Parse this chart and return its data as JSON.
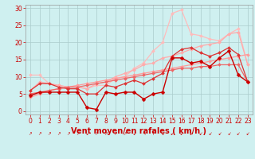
{
  "background_color": "#cff0f0",
  "grid_color": "#aacccc",
  "xlabel": "Vent moyen/en rafales ( km/h )",
  "xlabel_color": "#cc0000",
  "xlabel_fontsize": 7,
  "tick_color": "#cc0000",
  "tick_fontsize": 5.5,
  "xlim": [
    -0.5,
    23.5
  ],
  "ylim": [
    -1,
    31
  ],
  "yticks": [
    0,
    5,
    10,
    15,
    20,
    25,
    30
  ],
  "xticks": [
    0,
    1,
    2,
    3,
    4,
    5,
    6,
    7,
    8,
    9,
    10,
    11,
    12,
    13,
    14,
    15,
    16,
    17,
    18,
    19,
    20,
    21,
    22,
    23
  ],
  "series": [
    {
      "x": [
        0,
        1,
        2,
        3,
        4,
        5,
        6,
        7,
        8,
        9,
        10,
        11,
        12,
        13,
        14,
        15,
        16,
        17,
        18,
        19,
        20,
        21,
        22,
        23
      ],
      "y": [
        10.5,
        10.5,
        8.0,
        7.5,
        7.0,
        7.0,
        6.5,
        7.5,
        7.5,
        9.5,
        10.0,
        12.5,
        14.0,
        17.5,
        20.0,
        28.5,
        29.5,
        22.5,
        22.0,
        21.0,
        20.5,
        22.5,
        24.0,
        13.5
      ],
      "color": "#ffbbbb",
      "lw": 0.9,
      "marker": "D",
      "markersize": 2.0
    },
    {
      "x": [
        0,
        1,
        2,
        3,
        4,
        5,
        6,
        7,
        8,
        9,
        10,
        11,
        12,
        13,
        14,
        15,
        16,
        17,
        18,
        19,
        20,
        21,
        22,
        23
      ],
      "y": [
        6.0,
        8.5,
        8.0,
        7.5,
        7.0,
        7.0,
        6.5,
        8.0,
        8.5,
        10.0,
        11.0,
        12.0,
        13.5,
        14.0,
        15.5,
        16.0,
        17.0,
        18.0,
        19.0,
        19.5,
        20.0,
        22.5,
        23.0,
        13.5
      ],
      "color": "#ffaaaa",
      "lw": 0.9,
      "marker": "D",
      "markersize": 2.0
    },
    {
      "x": [
        0,
        1,
        2,
        3,
        4,
        5,
        6,
        7,
        8,
        9,
        10,
        11,
        12,
        13,
        14,
        15,
        16,
        17,
        18,
        19,
        20,
        21,
        22,
        23
      ],
      "y": [
        4.0,
        5.0,
        6.0,
        6.5,
        7.0,
        7.5,
        8.0,
        8.5,
        9.0,
        9.5,
        10.0,
        10.5,
        11.0,
        11.5,
        12.0,
        12.5,
        13.0,
        13.5,
        14.0,
        14.5,
        15.0,
        15.5,
        16.0,
        16.5
      ],
      "color": "#ff9999",
      "lw": 0.9,
      "marker": "D",
      "markersize": 2.0
    },
    {
      "x": [
        0,
        1,
        2,
        3,
        4,
        5,
        6,
        7,
        8,
        9,
        10,
        11,
        12,
        13,
        14,
        15,
        16,
        17,
        18,
        19,
        20,
        21,
        22,
        23
      ],
      "y": [
        5.0,
        5.5,
        6.0,
        6.5,
        7.0,
        7.0,
        7.5,
        8.0,
        8.5,
        9.0,
        9.5,
        10.0,
        10.5,
        11.0,
        11.5,
        12.0,
        12.5,
        12.5,
        13.0,
        13.0,
        13.5,
        13.5,
        13.5,
        8.5
      ],
      "color": "#ee6666",
      "lw": 0.9,
      "marker": "D",
      "markersize": 2.0
    },
    {
      "x": [
        0,
        1,
        2,
        3,
        4,
        5,
        6,
        7,
        8,
        9,
        10,
        11,
        12,
        13,
        14,
        15,
        16,
        17,
        18,
        19,
        20,
        21,
        22,
        23
      ],
      "y": [
        6.0,
        8.0,
        8.0,
        7.0,
        6.5,
        6.5,
        5.0,
        5.0,
        7.5,
        7.0,
        8.0,
        9.0,
        8.0,
        9.5,
        11.0,
        16.0,
        18.0,
        18.5,
        17.0,
        16.0,
        17.0,
        18.5,
        16.5,
        8.5
      ],
      "color": "#dd3333",
      "lw": 0.9,
      "marker": "D",
      "markersize": 2.0
    },
    {
      "x": [
        0,
        1,
        2,
        3,
        4,
        5,
        6,
        7,
        8,
        9,
        10,
        11,
        12,
        13,
        14,
        15,
        16,
        17,
        18,
        19,
        20,
        21,
        22,
        23
      ],
      "y": [
        4.5,
        5.5,
        5.5,
        5.5,
        5.5,
        5.5,
        1.0,
        0.5,
        5.5,
        5.0,
        5.5,
        5.5,
        3.5,
        5.0,
        5.5,
        15.5,
        15.5,
        14.0,
        14.5,
        13.0,
        15.5,
        17.5,
        10.5,
        8.5
      ],
      "color": "#cc0000",
      "lw": 1.0,
      "marker": "D",
      "markersize": 2.5
    }
  ],
  "wind_arrows": [
    "k",
    "k",
    "k",
    "k",
    "k",
    "k",
    "k",
    "k",
    "k",
    "k",
    "k",
    "k",
    "k",
    "k",
    "k",
    "k",
    "k",
    "k",
    "k",
    "k",
    "k",
    "k",
    "k",
    "k"
  ],
  "wind_arrow_color": "#cc0000"
}
